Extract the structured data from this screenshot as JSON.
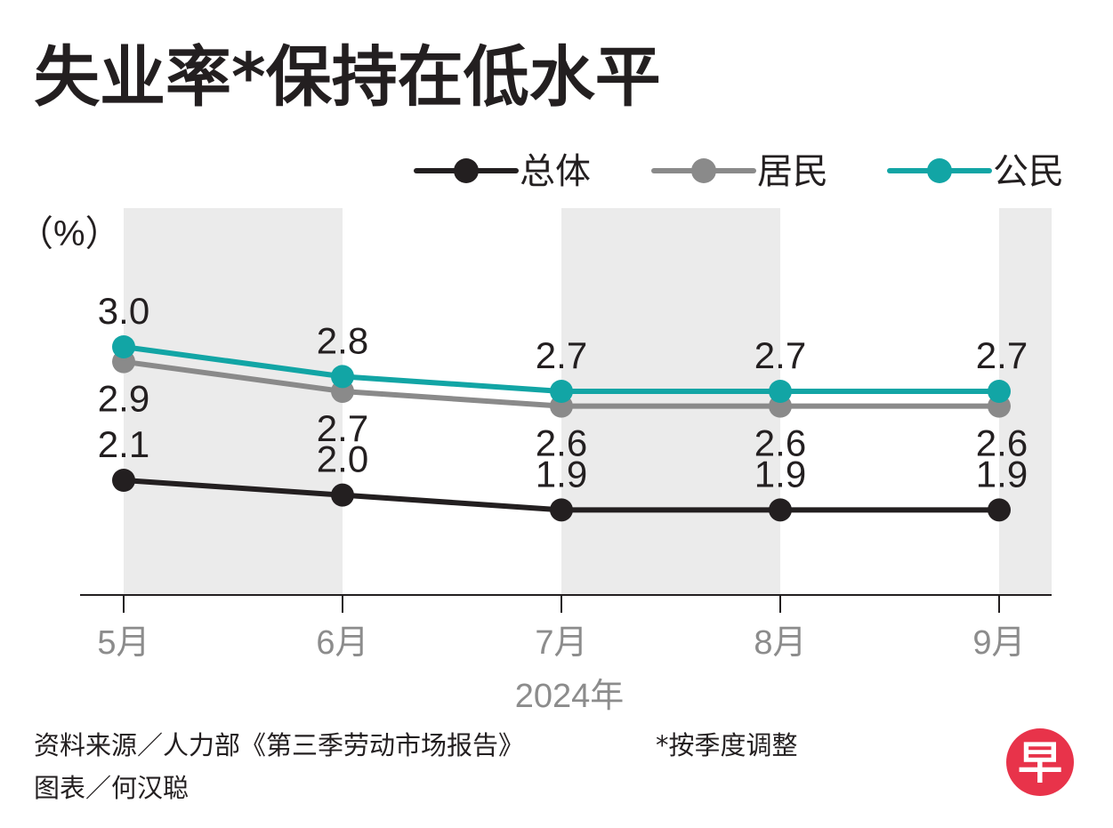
{
  "title": "失业率*保持在低水平",
  "unit_label": "（%）",
  "footnote": "*按季度调整",
  "source": "资料来源／人力部《第三季劳动市场报告》",
  "credit": "图表／何汉聪",
  "logo_text": "早",
  "colors": {
    "background": "#ffffff",
    "shade": "#ebebeb",
    "axis": "#231f20",
    "tick_label": "#8c8c8c",
    "overall": "#231f20",
    "resident": "#8a8a8a",
    "citizen": "#12a5a5",
    "logo": "#e8334a"
  },
  "chart_data": {
    "type": "line",
    "categories": [
      "5月",
      "6月",
      "7月",
      "8月",
      "9月"
    ],
    "xlabel": "2024年",
    "ylabel": "（%）",
    "ylim": [
      1.5,
      3.3
    ],
    "grid": false,
    "legend_position": "top-right",
    "shaded_columns": [
      true,
      false,
      true,
      false,
      true
    ],
    "series": [
      {
        "name": "总体",
        "color": "#231f20",
        "values": [
          2.1,
          2.0,
          1.9,
          1.9,
          1.9
        ],
        "labels": [
          "2.1",
          "2.0",
          "1.9",
          "1.9",
          "1.9"
        ],
        "label_side": "above"
      },
      {
        "name": "居民",
        "color": "#8a8a8a",
        "values": [
          2.9,
          2.7,
          2.6,
          2.6,
          2.6
        ],
        "labels": [
          "2.9",
          "2.7",
          "2.6",
          "2.6",
          "2.6"
        ],
        "label_side": "below"
      },
      {
        "name": "公民",
        "color": "#12a5a5",
        "values": [
          3.0,
          2.8,
          2.7,
          2.7,
          2.7
        ],
        "labels": [
          "3.0",
          "2.8",
          "2.7",
          "2.7",
          "2.7"
        ],
        "label_side": "above"
      }
    ]
  }
}
